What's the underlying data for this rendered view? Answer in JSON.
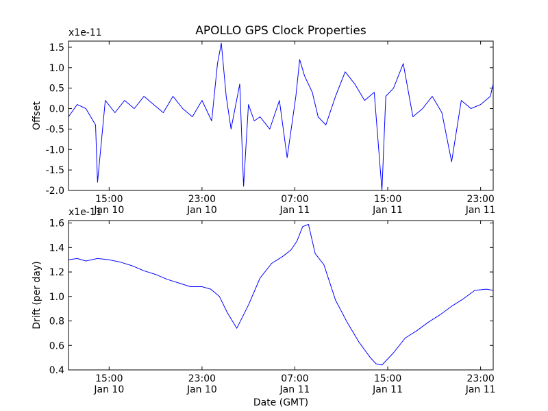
{
  "figure": {
    "title": "APOLLO GPS Clock Properties",
    "xlabel": "Date (GMT)"
  },
  "chart_data": [
    {
      "type": "line",
      "title": "APOLLO GPS Clock Properties",
      "ylabel": "Offset",
      "yscale_label": "x1e-11",
      "xlim": [
        "2010-01-10T11:30",
        "2010-01-12T00:05"
      ],
      "ylim": [
        -2.0,
        1.65
      ],
      "yticks": [
        "-2.0",
        "-1.5",
        "-1.0",
        "-0.5",
        "0.0",
        "0.5",
        "1.0",
        "1.5"
      ],
      "xticks": [
        {
          "time": "2010-01-10T15:00",
          "line1": "15:00",
          "line2": "Jan 10"
        },
        {
          "time": "2010-01-10T23:00",
          "line1": "23:00",
          "line2": "Jan 10"
        },
        {
          "time": "2010-01-11T07:00",
          "line1": "07:00",
          "line2": "Jan 11"
        },
        {
          "time": "2010-01-11T15:00",
          "line1": "15:00",
          "line2": "Jan 11"
        },
        {
          "time": "2010-01-11T23:00",
          "line1": "23:00",
          "line2": "Jan 11"
        }
      ],
      "color": "#0000ff",
      "series": [
        {
          "x": [
            "2010-01-10T11:30",
            "2010-01-10T12:15",
            "2010-01-10T13:00",
            "2010-01-10T13:50",
            "2010-01-10T14:00",
            "2010-01-10T14:40",
            "2010-01-10T15:30",
            "2010-01-10T16:20",
            "2010-01-10T17:10",
            "2010-01-10T18:00",
            "2010-01-10T18:50",
            "2010-01-10T19:40",
            "2010-01-10T20:30",
            "2010-01-10T21:20",
            "2010-01-10T22:10",
            "2010-01-10T23:00",
            "2010-01-10T23:50",
            "2010-01-11T00:20",
            "2010-01-11T00:40",
            "2010-01-11T01:05",
            "2010-01-11T01:30",
            "2010-01-11T02:15",
            "2010-01-11T02:35",
            "2010-01-11T03:00",
            "2010-01-11T03:30",
            "2010-01-11T04:00",
            "2010-01-11T04:50",
            "2010-01-11T05:40",
            "2010-01-11T06:20",
            "2010-01-11T07:05",
            "2010-01-11T07:25",
            "2010-01-11T07:50",
            "2010-01-11T08:30",
            "2010-01-11T09:00",
            "2010-01-11T09:40",
            "2010-01-11T10:30",
            "2010-01-11T11:20",
            "2010-01-11T12:10",
            "2010-01-11T13:00",
            "2010-01-11T13:50",
            "2010-01-11T14:30",
            "2010-01-11T14:50",
            "2010-01-11T15:30",
            "2010-01-11T16:20",
            "2010-01-11T17:10",
            "2010-01-11T18:00",
            "2010-01-11T18:50",
            "2010-01-11T19:40",
            "2010-01-11T20:30",
            "2010-01-11T21:20",
            "2010-01-11T22:10",
            "2010-01-11T23:00",
            "2010-01-11T23:50",
            "2010-01-12T00:05"
          ],
          "values": [
            -0.2,
            0.1,
            0.0,
            -0.4,
            -1.8,
            0.2,
            -0.1,
            0.2,
            0.0,
            0.3,
            0.1,
            -0.1,
            0.3,
            0.0,
            -0.2,
            0.2,
            -0.3,
            1.1,
            1.6,
            0.3,
            -0.5,
            0.6,
            -1.9,
            0.1,
            -0.3,
            -0.2,
            -0.5,
            0.2,
            -1.2,
            0.3,
            1.2,
            0.8,
            0.4,
            -0.2,
            -0.4,
            0.3,
            0.9,
            0.6,
            0.2,
            0.4,
            -2.0,
            0.3,
            0.5,
            1.1,
            -0.2,
            0.0,
            0.3,
            -0.1,
            -1.3,
            0.2,
            0.0,
            0.1,
            0.3,
            0.6
          ]
        }
      ]
    },
    {
      "type": "line",
      "ylabel": "Drift (per day)",
      "yscale_label": "x1e-11",
      "xlim": [
        "2010-01-10T11:30",
        "2010-01-12T00:05"
      ],
      "ylim": [
        0.4,
        1.62
      ],
      "yticks": [
        "0.4",
        "0.6",
        "0.8",
        "1.0",
        "1.2",
        "1.4",
        "1.6"
      ],
      "xticks": [
        {
          "time": "2010-01-10T15:00",
          "line1": "15:00",
          "line2": "Jan 10"
        },
        {
          "time": "2010-01-10T23:00",
          "line1": "23:00",
          "line2": "Jan 10"
        },
        {
          "time": "2010-01-11T07:00",
          "line1": "07:00",
          "line2": "Jan 11"
        },
        {
          "time": "2010-01-11T15:00",
          "line1": "15:00",
          "line2": "Jan 11"
        },
        {
          "time": "2010-01-11T23:00",
          "line1": "23:00",
          "line2": "Jan 11"
        }
      ],
      "color": "#0000ff",
      "series": [
        {
          "x": [
            "2010-01-10T11:30",
            "2010-01-10T12:15",
            "2010-01-10T13:00",
            "2010-01-10T14:00",
            "2010-01-10T15:00",
            "2010-01-10T16:00",
            "2010-01-10T17:00",
            "2010-01-10T18:00",
            "2010-01-10T19:00",
            "2010-01-10T20:00",
            "2010-01-10T21:00",
            "2010-01-10T22:00",
            "2010-01-10T23:00",
            "2010-01-10T23:45",
            "2010-01-11T00:30",
            "2010-01-11T01:10",
            "2010-01-11T02:00",
            "2010-01-11T03:00",
            "2010-01-11T04:00",
            "2010-01-11T05:00",
            "2010-01-11T06:00",
            "2010-01-11T06:40",
            "2010-01-11T07:10",
            "2010-01-11T07:40",
            "2010-01-11T08:10",
            "2010-01-11T08:45",
            "2010-01-11T09:30",
            "2010-01-11T10:30",
            "2010-01-11T11:30",
            "2010-01-11T12:30",
            "2010-01-11T13:30",
            "2010-01-11T14:00",
            "2010-01-11T14:30",
            "2010-01-11T15:30",
            "2010-01-11T16:30",
            "2010-01-11T17:30",
            "2010-01-11T18:30",
            "2010-01-11T19:30",
            "2010-01-11T20:30",
            "2010-01-11T21:30",
            "2010-01-11T22:30",
            "2010-01-11T23:30",
            "2010-01-12T00:05"
          ],
          "values": [
            1.3,
            1.31,
            1.29,
            1.31,
            1.3,
            1.28,
            1.25,
            1.21,
            1.18,
            1.14,
            1.11,
            1.08,
            1.08,
            1.06,
            1.0,
            0.87,
            0.74,
            0.93,
            1.15,
            1.27,
            1.33,
            1.38,
            1.45,
            1.57,
            1.59,
            1.35,
            1.26,
            0.97,
            0.79,
            0.63,
            0.5,
            0.45,
            0.44,
            0.54,
            0.66,
            0.72,
            0.79,
            0.85,
            0.92,
            0.98,
            1.05,
            1.06,
            1.05
          ]
        }
      ]
    }
  ]
}
